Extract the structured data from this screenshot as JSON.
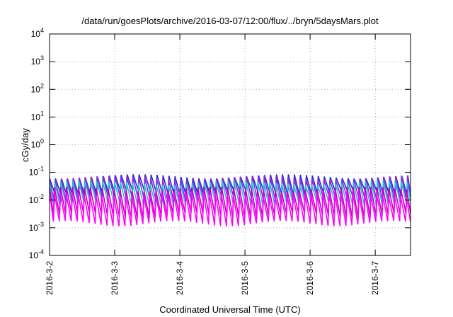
{
  "chart_data": {
    "type": "line",
    "title": "/data/run/goesPlots/archive/2016-03-07/12:00/flux/../bryn/5daysMars.plot",
    "xlabel": "Coordinated Universal Time (UTC)",
    "ylabel": "cGy/day",
    "yscale": "log",
    "ylim": [
      0.0001,
      10000
    ],
    "xlim": [
      "2016-03-02 00:00",
      "2016-03-07 13:00"
    ],
    "grid": true,
    "y_ticks": [
      {
        "base": "10",
        "exp": "-4"
      },
      {
        "base": "10",
        "exp": "-3"
      },
      {
        "base": "10",
        "exp": "-2"
      },
      {
        "base": "10",
        "exp": "-1"
      },
      {
        "base": "10",
        "exp": "0"
      },
      {
        "base": "10",
        "exp": "1"
      },
      {
        "base": "10",
        "exp": "2"
      },
      {
        "base": "10",
        "exp": "3"
      },
      {
        "base": "10",
        "exp": "4"
      }
    ],
    "x_ticks": [
      "2016-3-2",
      "2016-3-3",
      "2016-3-4",
      "2016-3-5",
      "2016-3-6",
      "2016-3-7"
    ],
    "sawtooth_period_hours": 2.2,
    "series": [
      {
        "color": "#2b2bd8",
        "peak": 0.085,
        "trough": 0.02
      },
      {
        "color": "#8a2be2",
        "peak": 0.075,
        "trough": 0.012
      },
      {
        "color": "#1ec8c8",
        "peak": 0.05,
        "trough": 0.008
      },
      {
        "color": "#c000c0",
        "peak": 0.03,
        "trough": 0.003
      },
      {
        "color": "#ff00ff",
        "peak": 0.02,
        "trough": 0.0016
      }
    ]
  }
}
